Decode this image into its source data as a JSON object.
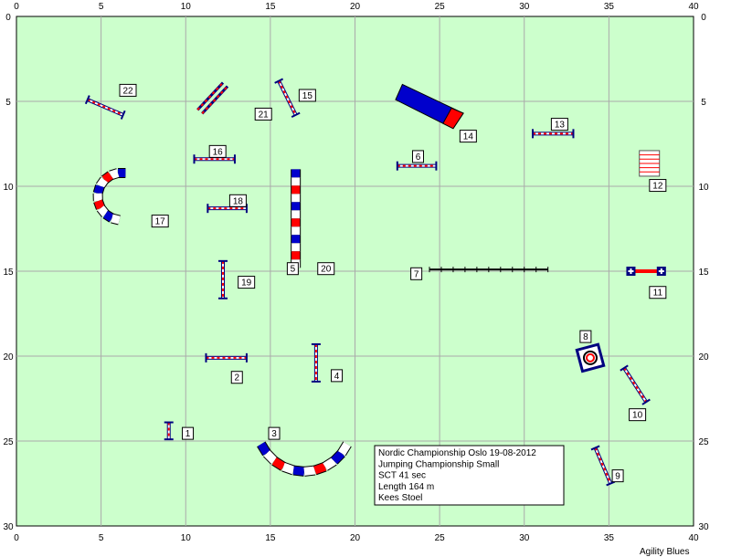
{
  "course": {
    "width_m": 40,
    "height_m": 30,
    "ticks_x": [
      0,
      5,
      10,
      15,
      20,
      25,
      30,
      35,
      40
    ],
    "ticks_y": [
      0,
      5,
      10,
      15,
      20,
      25,
      30
    ],
    "field_color": "#ccffcc",
    "grid_color": "#aaaaaa"
  },
  "obstacles": [
    {
      "number": "1",
      "type": "jump",
      "at": [
        9.0,
        23.9
      ],
      "end": [
        9.0,
        24.9
      ],
      "label_at": [
        9.8,
        24.2
      ]
    },
    {
      "number": "2",
      "type": "jump",
      "at": [
        11.2,
        20.1
      ],
      "end": [
        13.6,
        20.1
      ],
      "label_at": [
        12.7,
        20.9
      ]
    },
    {
      "number": "3",
      "type": "tunnel",
      "label_at": [
        14.9,
        24.2
      ]
    },
    {
      "number": "4",
      "type": "jump",
      "at": [
        17.7,
        19.3
      ],
      "end": [
        17.7,
        21.5
      ],
      "label_at": [
        18.6,
        20.8
      ]
    },
    {
      "number": "5",
      "type": "tunnel",
      "label_at": [
        16.0,
        14.5
      ]
    },
    {
      "number": "6",
      "type": "jump",
      "at": [
        22.5,
        8.8
      ],
      "end": [
        24.8,
        8.8
      ],
      "label_at": [
        23.4,
        7.9
      ]
    },
    {
      "number": "7",
      "type": "dogwalk",
      "label_at": [
        23.3,
        14.8
      ]
    },
    {
      "number": "8",
      "type": "table",
      "label_at": [
        33.3,
        18.5
      ]
    },
    {
      "number": "9",
      "type": "jump",
      "at": [
        34.2,
        25.4
      ],
      "end": [
        35.1,
        27.5
      ],
      "label_at": [
        35.2,
        26.7
      ]
    },
    {
      "number": "10",
      "type": "jump",
      "at": [
        35.9,
        20.7
      ],
      "end": [
        37.2,
        22.7
      ],
      "label_at": [
        36.2,
        23.1
      ]
    },
    {
      "number": "11",
      "type": "tire",
      "label_at": [
        37.4,
        15.9
      ]
    },
    {
      "number": "12",
      "type": "wall",
      "label_at": [
        37.4,
        9.6
      ]
    },
    {
      "number": "13",
      "type": "jump",
      "at": [
        30.5,
        6.9
      ],
      "end": [
        32.9,
        6.9
      ],
      "label_at": [
        31.6,
        6.0
      ]
    },
    {
      "number": "14",
      "type": "aframe",
      "label_at": [
        26.2,
        6.7
      ]
    },
    {
      "number": "15",
      "type": "jump",
      "at": [
        15.5,
        3.8
      ],
      "end": [
        16.5,
        5.8
      ],
      "label_at": [
        16.7,
        4.3
      ]
    },
    {
      "number": "16",
      "type": "jump",
      "at": [
        10.5,
        8.4
      ],
      "end": [
        12.9,
        8.4
      ],
      "label_at": [
        11.4,
        7.6
      ]
    },
    {
      "number": "17",
      "type": "tunnel",
      "label_at": [
        8.0,
        11.7
      ]
    },
    {
      "number": "18",
      "type": "jump",
      "at": [
        11.3,
        11.3
      ],
      "end": [
        13.6,
        11.3
      ],
      "label_at": [
        12.6,
        10.5
      ]
    },
    {
      "number": "19",
      "type": "jump",
      "at": [
        12.2,
        14.4
      ],
      "end": [
        12.2,
        16.6
      ],
      "label_at": [
        13.1,
        15.3
      ]
    },
    {
      "number": "20",
      "type": "tunnel",
      "label_at": [
        17.8,
        14.5
      ]
    },
    {
      "number": "21",
      "type": "double",
      "label_at": [
        14.1,
        5.4
      ]
    },
    {
      "number": "22",
      "type": "jump",
      "at": [
        4.2,
        4.9
      ],
      "end": [
        6.3,
        5.8
      ],
      "label_at": [
        6.1,
        4.0
      ]
    }
  ],
  "info": {
    "lines": [
      "Nordic Championship Oslo 19-08-2012",
      "Jumping Championship Small",
      "SCT 41 sec",
      "Length 164 m",
      "Kees Stoel"
    ]
  },
  "credit": "Agility Blues",
  "colors": {
    "blue": "#0000cc",
    "red": "#ff0000",
    "dark_blue": "#000080",
    "white": "#ffffff"
  }
}
